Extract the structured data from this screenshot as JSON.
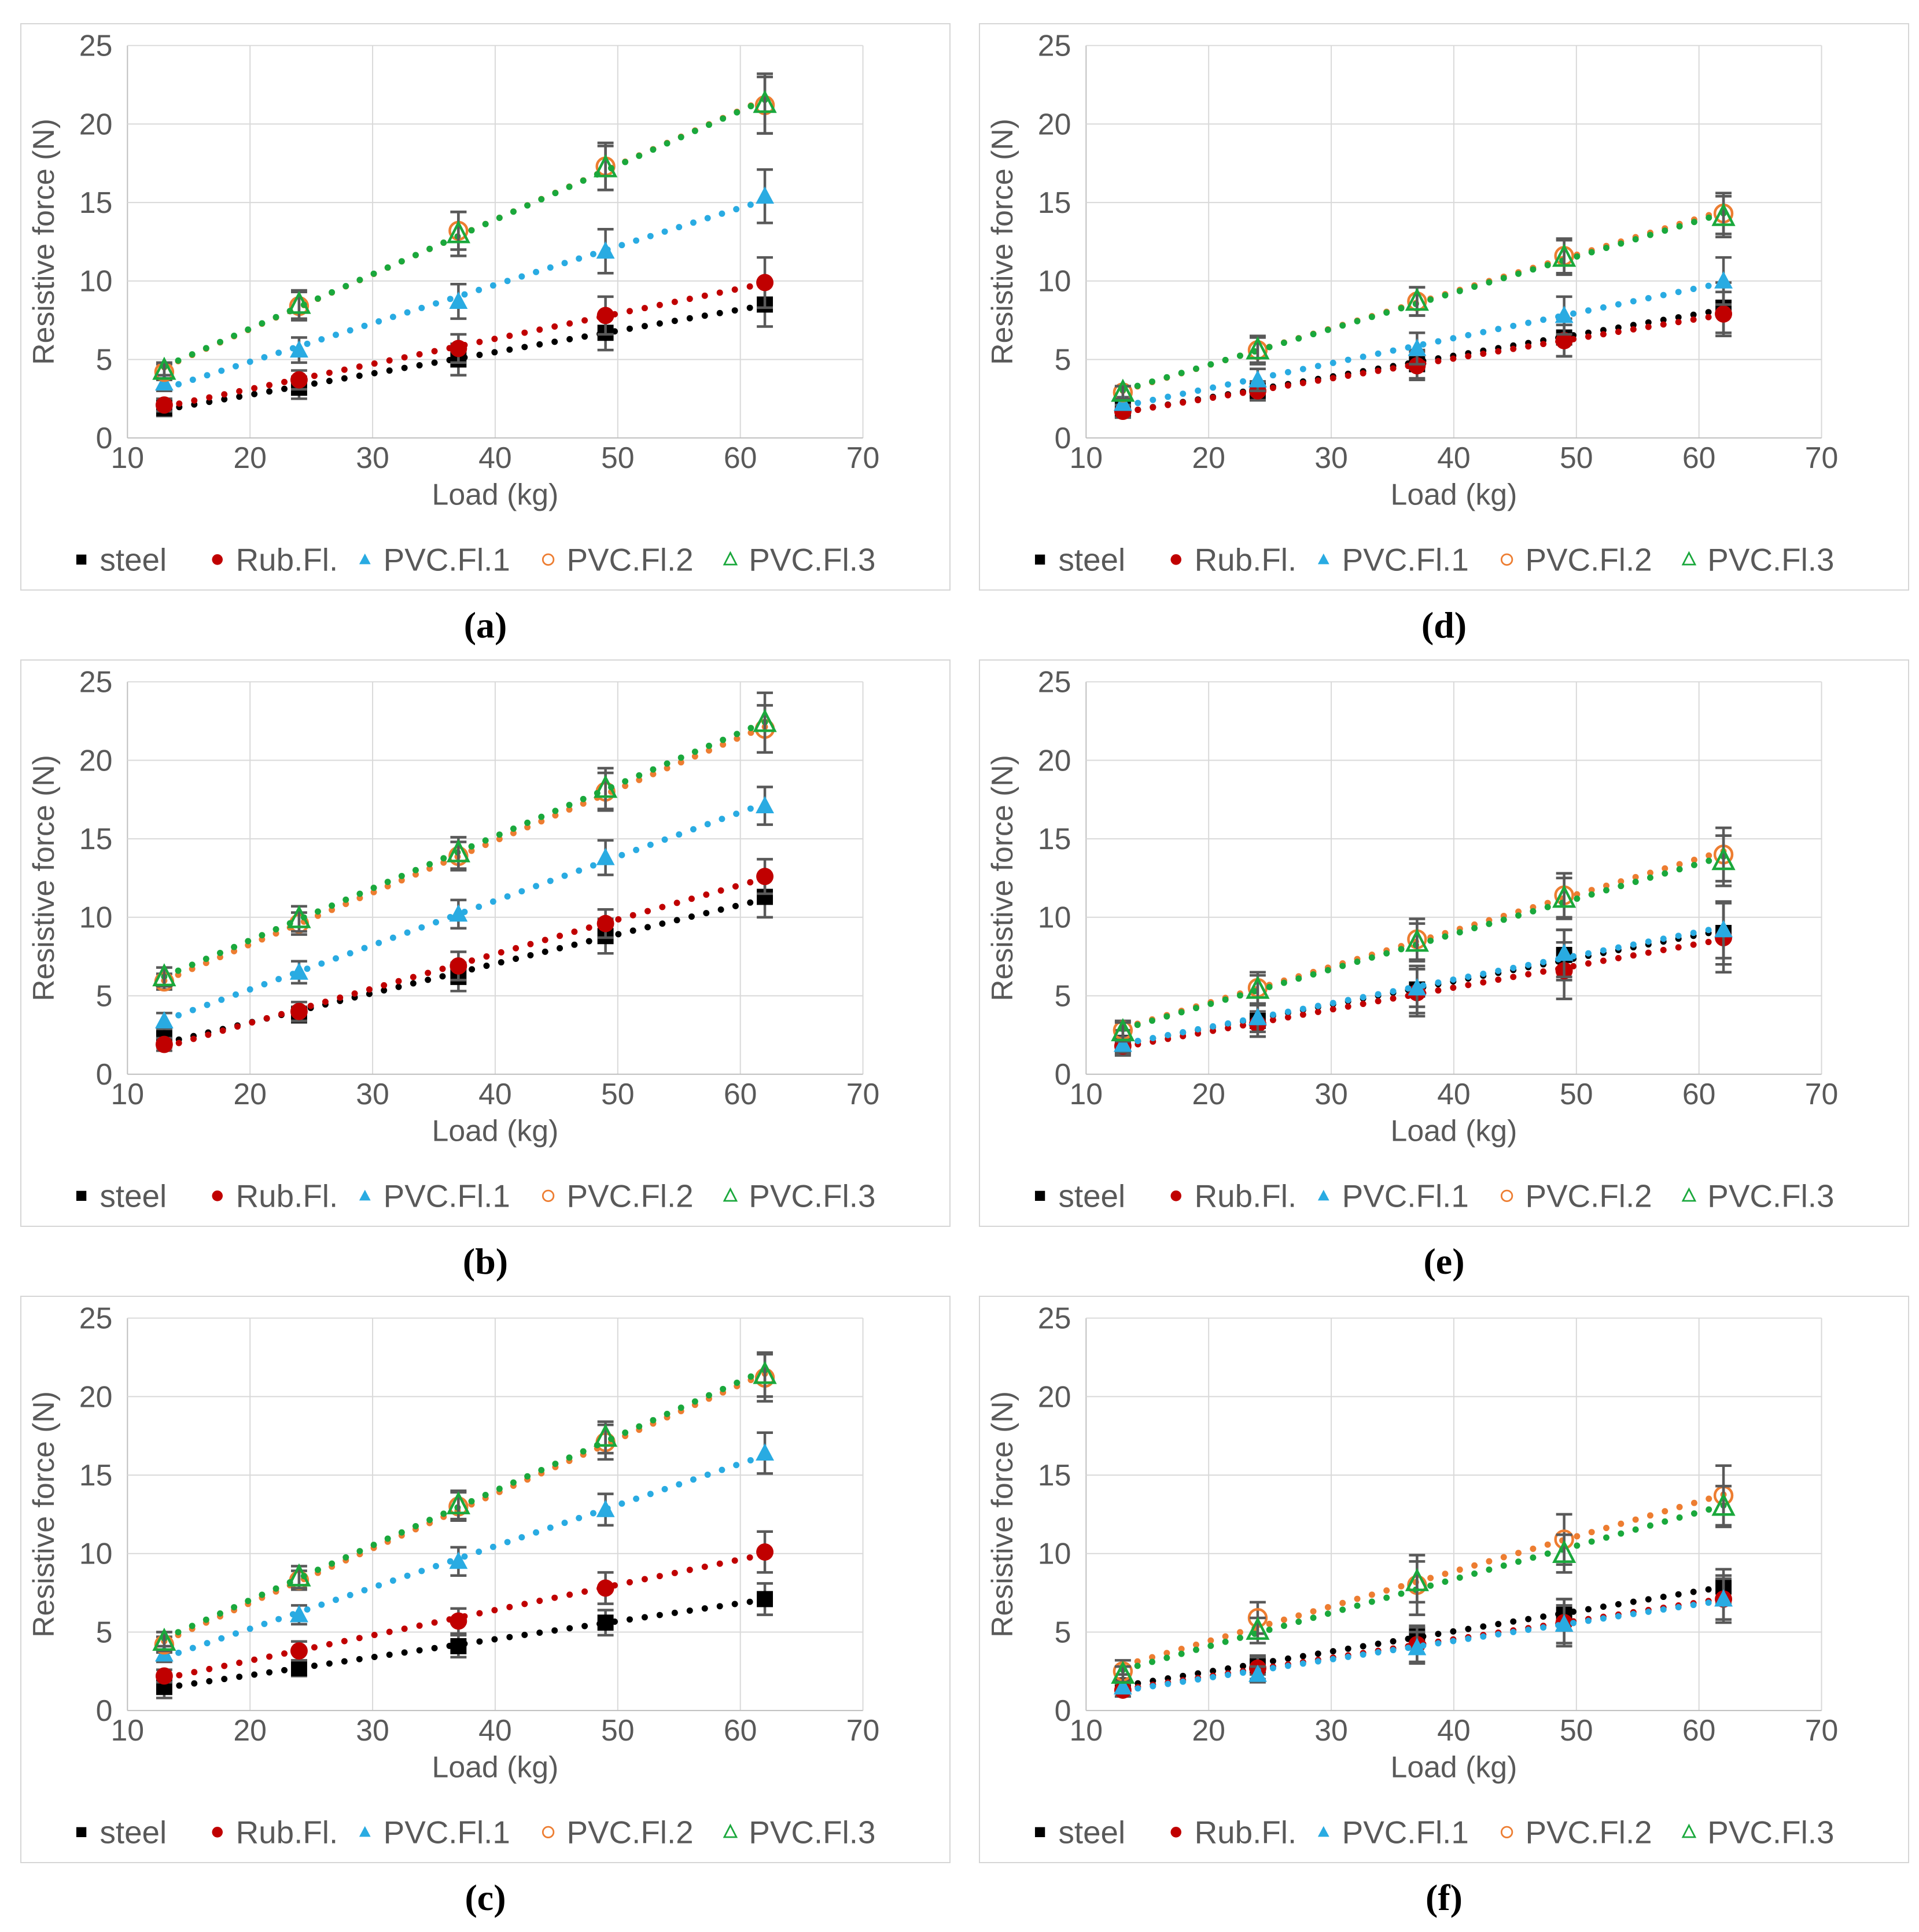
{
  "figure": {
    "colors": {
      "text": "#595959",
      "gridline": "#d9d9d9",
      "axis_line": "#bfbfbf",
      "error_bar": "#595959",
      "panel_border": "#d6d6d6",
      "background": "#ffffff"
    },
    "axis": {
      "xlabel": "Load (kg)",
      "ylabel": "Resistive force (N)",
      "xlim": [
        10,
        70
      ],
      "ylim": [
        0,
        25
      ],
      "xticks": [
        10,
        20,
        30,
        40,
        50,
        60,
        70
      ],
      "yticks": [
        0,
        5,
        10,
        15,
        20,
        25
      ],
      "grid": true
    },
    "legend_position": "bottom",
    "legend": [
      {
        "name": "steel",
        "marker": "filled-square",
        "color": "#000000"
      },
      {
        "name": "Rub.Fl.",
        "marker": "filled-circle",
        "color": "#c00000"
      },
      {
        "name": "PVC.Fl.1",
        "marker": "filled-triangle",
        "color": "#29abe2"
      },
      {
        "name": "PVC.Fl.2",
        "marker": "open-circle",
        "color": "#ed7d31"
      },
      {
        "name": "PVC.Fl.3",
        "marker": "open-triangle",
        "color": "#1aa83c"
      }
    ],
    "panel_order": [
      0,
      3,
      1,
      4,
      2,
      5
    ],
    "trendline_style": "dotted-linear"
  },
  "chart_data": [
    {
      "id": "a",
      "title": "(a)",
      "type": "scatter",
      "xlabel": "Load (kg)",
      "ylabel": "Resistive force (N)",
      "xlim": [
        10,
        70
      ],
      "ylim": [
        0,
        25
      ],
      "x": [
        13,
        24,
        37,
        49,
        62
      ],
      "series": [
        {
          "name": "steel",
          "values": [
            1.9,
            3.2,
            5.0,
            6.7,
            8.5
          ],
          "errors": [
            0.5,
            0.7,
            1.0,
            1.1,
            1.4
          ]
        },
        {
          "name": "Rub.Fl.",
          "values": [
            2.1,
            3.7,
            5.7,
            7.8,
            9.9
          ],
          "errors": [
            0.4,
            0.6,
            0.9,
            1.2,
            1.6
          ]
        },
        {
          "name": "PVC.Fl.1",
          "values": [
            3.5,
            5.6,
            8.7,
            11.9,
            15.4
          ],
          "errors": [
            0.5,
            0.8,
            1.1,
            1.4,
            1.7
          ]
        },
        {
          "name": "PVC.Fl.2",
          "values": [
            4.2,
            8.4,
            13.2,
            17.3,
            21.2
          ],
          "errors": [
            0.5,
            0.9,
            1.2,
            1.5,
            1.8
          ]
        },
        {
          "name": "PVC.Fl.3",
          "values": [
            4.3,
            8.5,
            13.0,
            17.2,
            21.3
          ],
          "errors": [
            0.5,
            0.9,
            1.4,
            1.4,
            1.9
          ]
        }
      ]
    },
    {
      "id": "b",
      "title": "(b)",
      "type": "scatter",
      "xlabel": "Load (kg)",
      "ylabel": "Resistive force (N)",
      "xlim": [
        10,
        70
      ],
      "ylim": [
        0,
        25
      ],
      "x": [
        13,
        24,
        37,
        49,
        62
      ],
      "series": [
        {
          "name": "steel",
          "values": [
            2.3,
            3.8,
            6.2,
            8.8,
            11.3
          ],
          "errors": [
            0.6,
            0.5,
            0.9,
            1.1,
            1.3
          ]
        },
        {
          "name": "Rub.Fl.",
          "values": [
            1.9,
            4.0,
            6.9,
            9.6,
            12.6
          ],
          "errors": [
            0.4,
            0.6,
            0.9,
            0.9,
            1.1
          ]
        },
        {
          "name": "PVC.Fl.1",
          "values": [
            3.4,
            6.5,
            10.2,
            13.8,
            17.1
          ],
          "errors": [
            0.5,
            0.7,
            0.9,
            1.1,
            1.2
          ]
        },
        {
          "name": "PVC.Fl.2",
          "values": [
            5.9,
            9.6,
            13.9,
            18.0,
            22.0
          ],
          "errors": [
            0.5,
            0.7,
            0.9,
            1.2,
            1.5
          ]
        },
        {
          "name": "PVC.Fl.3",
          "values": [
            6.2,
            9.9,
            14.1,
            18.2,
            22.4
          ],
          "errors": [
            0.6,
            0.8,
            1.0,
            1.3,
            1.9
          ]
        }
      ]
    },
    {
      "id": "c",
      "title": "(c)",
      "type": "scatter",
      "xlabel": "Load (kg)",
      "ylabel": "Resistive force (N)",
      "xlim": [
        10,
        70
      ],
      "ylim": [
        0,
        25
      ],
      "x": [
        13,
        24,
        37,
        49,
        62
      ],
      "series": [
        {
          "name": "steel",
          "values": [
            1.5,
            2.7,
            4.1,
            5.6,
            7.1
          ],
          "errors": [
            0.7,
            0.5,
            0.7,
            0.8,
            1.0
          ]
        },
        {
          "name": "Rub.Fl.",
          "values": [
            2.2,
            3.8,
            5.7,
            7.8,
            10.1
          ],
          "errors": [
            0.4,
            0.6,
            0.8,
            1.0,
            1.3
          ]
        },
        {
          "name": "PVC.Fl.1",
          "values": [
            3.6,
            6.1,
            9.5,
            12.8,
            16.4
          ],
          "errors": [
            0.5,
            0.6,
            0.9,
            1.0,
            1.3
          ]
        },
        {
          "name": "PVC.Fl.2",
          "values": [
            4.2,
            8.3,
            13.0,
            17.1,
            21.2
          ],
          "errors": [
            0.5,
            0.6,
            0.9,
            1.1,
            1.5
          ]
        },
        {
          "name": "PVC.Fl.3",
          "values": [
            4.4,
            8.5,
            13.1,
            17.4,
            21.4
          ],
          "errors": [
            0.6,
            0.7,
            0.9,
            1.0,
            1.4
          ]
        }
      ]
    },
    {
      "id": "d",
      "title": "(d)",
      "type": "scatter",
      "xlabel": "Load (kg)",
      "ylabel": "Resistive force (N)",
      "xlim": [
        10,
        70
      ],
      "ylim": [
        0,
        25
      ],
      "x": [
        13,
        24,
        37,
        49,
        62
      ],
      "series": [
        {
          "name": "steel",
          "values": [
            1.8,
            3.0,
            4.7,
            6.4,
            8.3
          ],
          "errors": [
            0.5,
            0.6,
            0.9,
            1.2,
            1.6
          ]
        },
        {
          "name": "Rub.Fl.",
          "values": [
            1.7,
            3.0,
            4.6,
            6.2,
            7.9
          ],
          "errors": [
            0.4,
            0.6,
            0.9,
            1.0,
            1.4
          ]
        },
        {
          "name": "PVC.Fl.1",
          "values": [
            2.2,
            3.7,
            5.7,
            7.8,
            10.0
          ],
          "errors": [
            0.4,
            0.7,
            1.0,
            1.2,
            1.5
          ]
        },
        {
          "name": "PVC.Fl.2",
          "values": [
            2.9,
            5.6,
            8.7,
            11.6,
            14.3
          ],
          "errors": [
            0.4,
            0.9,
            0.9,
            1.1,
            1.3
          ]
        },
        {
          "name": "PVC.Fl.3",
          "values": [
            2.9,
            5.6,
            8.7,
            11.5,
            14.1
          ],
          "errors": [
            0.4,
            0.8,
            0.9,
            1.1,
            1.3
          ]
        }
      ]
    },
    {
      "id": "e",
      "title": "(e)",
      "type": "scatter",
      "xlabel": "Load (kg)",
      "ylabel": "Resistive force (N)",
      "xlim": [
        10,
        70
      ],
      "ylim": [
        0,
        25
      ],
      "x": [
        13,
        24,
        37,
        49,
        62
      ],
      "series": [
        {
          "name": "steel",
          "values": [
            2.0,
            3.4,
            5.4,
            7.6,
            9.0
          ],
          "errors": [
            0.8,
            1.0,
            1.5,
            1.6,
            2.0
          ]
        },
        {
          "name": "Rub.Fl.",
          "values": [
            1.8,
            3.2,
            5.2,
            6.6,
            8.7
          ],
          "errors": [
            0.5,
            0.8,
            1.5,
            1.8,
            2.2
          ]
        },
        {
          "name": "PVC.Fl.1",
          "values": [
            1.9,
            3.6,
            5.5,
            7.7,
            9.2
          ],
          "errors": [
            0.5,
            0.9,
            1.2,
            1.5,
            1.8
          ]
        },
        {
          "name": "PVC.Fl.2",
          "values": [
            2.8,
            5.5,
            8.6,
            11.4,
            14.0
          ],
          "errors": [
            0.6,
            1.0,
            1.3,
            1.4,
            1.7
          ]
        },
        {
          "name": "PVC.Fl.3",
          "values": [
            2.7,
            5.4,
            8.4,
            11.2,
            13.6
          ],
          "errors": [
            0.6,
            0.9,
            1.2,
            1.3,
            1.6
          ]
        }
      ]
    },
    {
      "id": "f",
      "title": "(f)",
      "type": "scatter",
      "xlabel": "Load (kg)",
      "ylabel": "Resistive force (N)",
      "xlim": [
        10,
        70
      ],
      "ylim": [
        0,
        25
      ],
      "x": [
        13,
        24,
        37,
        49,
        62
      ],
      "series": [
        {
          "name": "steel",
          "values": [
            1.6,
            2.9,
            4.8,
            6.1,
            7.9
          ],
          "errors": [
            0.7,
            0.6,
            0.6,
            1.0,
            1.1
          ]
        },
        {
          "name": "Rub.Fl.",
          "values": [
            1.3,
            2.7,
            4.2,
            5.6,
            7.1
          ],
          "errors": [
            0.4,
            0.7,
            1.1,
            1.5,
            1.5
          ]
        },
        {
          "name": "PVC.Fl.1",
          "values": [
            1.5,
            2.3,
            4.0,
            5.5,
            7.1
          ],
          "errors": [
            0.4,
            0.5,
            1.0,
            1.2,
            1.3
          ]
        },
        {
          "name": "PVC.Fl.2",
          "values": [
            2.5,
            5.9,
            8.0,
            10.9,
            13.7
          ],
          "errors": [
            0.7,
            1.0,
            1.9,
            1.6,
            1.9
          ]
        },
        {
          "name": "PVC.Fl.3",
          "values": [
            2.3,
            5.1,
            8.2,
            10.0,
            13.0
          ],
          "errors": [
            0.5,
            0.8,
            1.3,
            1.2,
            1.3
          ]
        }
      ]
    }
  ]
}
